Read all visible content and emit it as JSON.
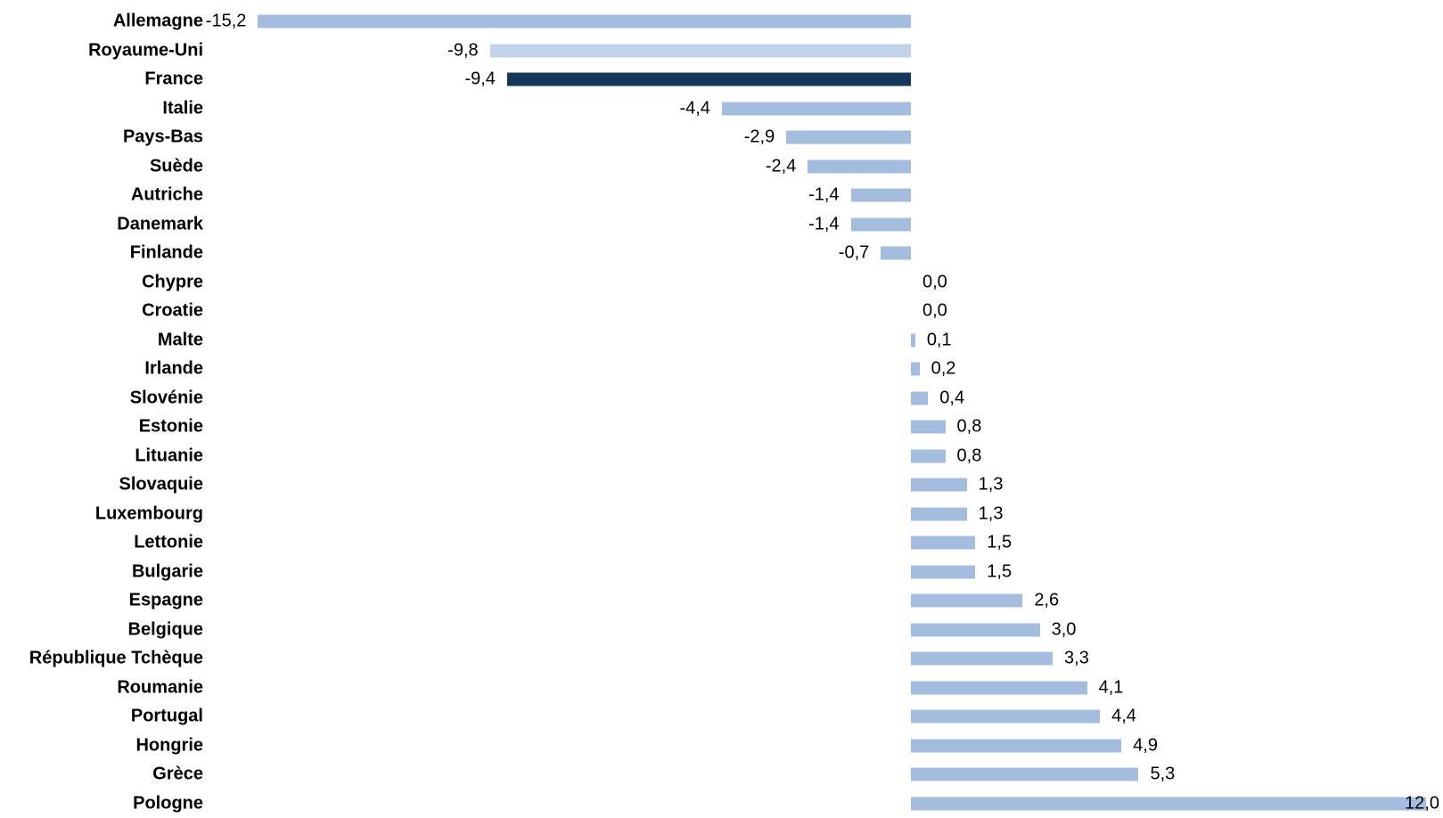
{
  "chart_data": {
    "type": "bar",
    "orientation": "horizontal",
    "title": "",
    "xlabel": "",
    "ylabel": "",
    "legend": "none",
    "grid": "off",
    "axis_line": "none",
    "value_format": "decimal-comma",
    "xlim": [
      -15.6,
      12.4
    ],
    "colors": {
      "default": "#a4bdde",
      "light": "#c2d2e9",
      "highlight": "#16365c"
    },
    "highlighted_category": "France",
    "light_category": "Royaume-Uni",
    "items": [
      {
        "name": "Allemagne",
        "value": -15.2,
        "display": "-15,2",
        "role": "default"
      },
      {
        "name": "Royaume-Uni",
        "value": -9.8,
        "display": "-9,8",
        "role": "light"
      },
      {
        "name": "France",
        "value": -9.4,
        "display": "-9,4",
        "role": "highlight"
      },
      {
        "name": "Italie",
        "value": -4.4,
        "display": "-4,4",
        "role": "default"
      },
      {
        "name": "Pays-Bas",
        "value": -2.9,
        "display": "-2,9",
        "role": "default"
      },
      {
        "name": "Suède",
        "value": -2.4,
        "display": "-2,4",
        "role": "default"
      },
      {
        "name": "Autriche",
        "value": -1.4,
        "display": "-1,4",
        "role": "default"
      },
      {
        "name": "Danemark",
        "value": -1.4,
        "display": "-1,4",
        "role": "default"
      },
      {
        "name": "Finlande",
        "value": -0.7,
        "display": "-0,7",
        "role": "default"
      },
      {
        "name": "Chypre",
        "value": 0.0,
        "display": "0,0",
        "role": "default"
      },
      {
        "name": "Croatie",
        "value": 0.0,
        "display": "0,0",
        "role": "default"
      },
      {
        "name": "Malte",
        "value": 0.1,
        "display": "0,1",
        "role": "default"
      },
      {
        "name": "Irlande",
        "value": 0.2,
        "display": "0,2",
        "role": "default"
      },
      {
        "name": "Slovénie",
        "value": 0.4,
        "display": "0,4",
        "role": "default"
      },
      {
        "name": "Estonie",
        "value": 0.8,
        "display": "0,8",
        "role": "default"
      },
      {
        "name": "Lituanie",
        "value": 0.8,
        "display": "0,8",
        "role": "default"
      },
      {
        "name": "Slovaquie",
        "value": 1.3,
        "display": "1,3",
        "role": "default"
      },
      {
        "name": "Luxembourg",
        "value": 1.3,
        "display": "1,3",
        "role": "default"
      },
      {
        "name": "Lettonie",
        "value": 1.5,
        "display": "1,5",
        "role": "default"
      },
      {
        "name": "Bulgarie",
        "value": 1.5,
        "display": "1,5",
        "role": "default"
      },
      {
        "name": "Espagne",
        "value": 2.6,
        "display": "2,6",
        "role": "default"
      },
      {
        "name": "Belgique",
        "value": 3.0,
        "display": "3,0",
        "role": "default"
      },
      {
        "name": "République Tchèque",
        "value": 3.3,
        "display": "3,3",
        "role": "default"
      },
      {
        "name": "Roumanie",
        "value": 4.1,
        "display": "4,1",
        "role": "default"
      },
      {
        "name": "Portugal",
        "value": 4.4,
        "display": "4,4",
        "role": "default"
      },
      {
        "name": "Hongrie",
        "value": 4.9,
        "display": "4,9",
        "role": "default"
      },
      {
        "name": "Grèce",
        "value": 5.3,
        "display": "5,3",
        "role": "default"
      },
      {
        "name": "Pologne",
        "value": 12.0,
        "display": "12,0",
        "role": "default",
        "value_label_inside": true
      }
    ]
  }
}
